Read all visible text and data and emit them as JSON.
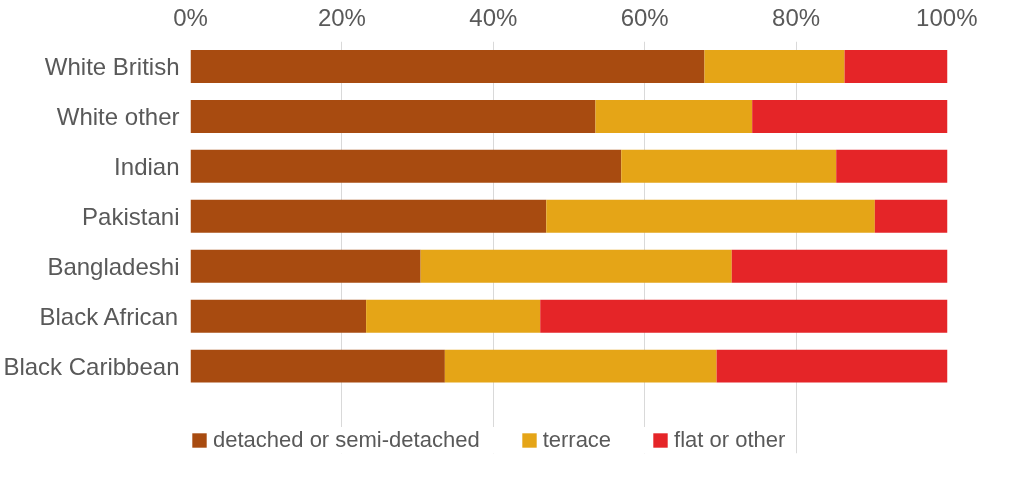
{
  "chart_data": {
    "type": "bar",
    "orientation": "horizontal",
    "stacked": true,
    "categories": [
      "White British",
      "White other",
      "Indian",
      "Pakistani",
      "Bangladeshi",
      "Black African",
      "Black Caribbean"
    ],
    "series": [
      {
        "name": "detached or semi-detached",
        "color": "#a84b10",
        "values": [
          67.9,
          53.5,
          56.9,
          47.0,
          30.4,
          23.2,
          33.6
        ]
      },
      {
        "name": "terrace",
        "color": "#e5a517",
        "values": [
          18.5,
          20.7,
          28.4,
          43.4,
          41.1,
          23.0,
          35.9
        ]
      },
      {
        "name": "flat or other",
        "color": "#e52528",
        "values": [
          13.6,
          25.8,
          14.7,
          9.6,
          28.5,
          53.8,
          30.5
        ]
      }
    ],
    "xlim": [
      0,
      100
    ],
    "xticks": [
      {
        "value": 0,
        "label": "0%"
      },
      {
        "value": 20,
        "label": "20%"
      },
      {
        "value": 40,
        "label": "40%"
      },
      {
        "value": 60,
        "label": "60%"
      },
      {
        "value": 80,
        "label": "80%"
      },
      {
        "value": 100,
        "label": "100%"
      }
    ],
    "grid": "x",
    "legend": "bottom"
  }
}
